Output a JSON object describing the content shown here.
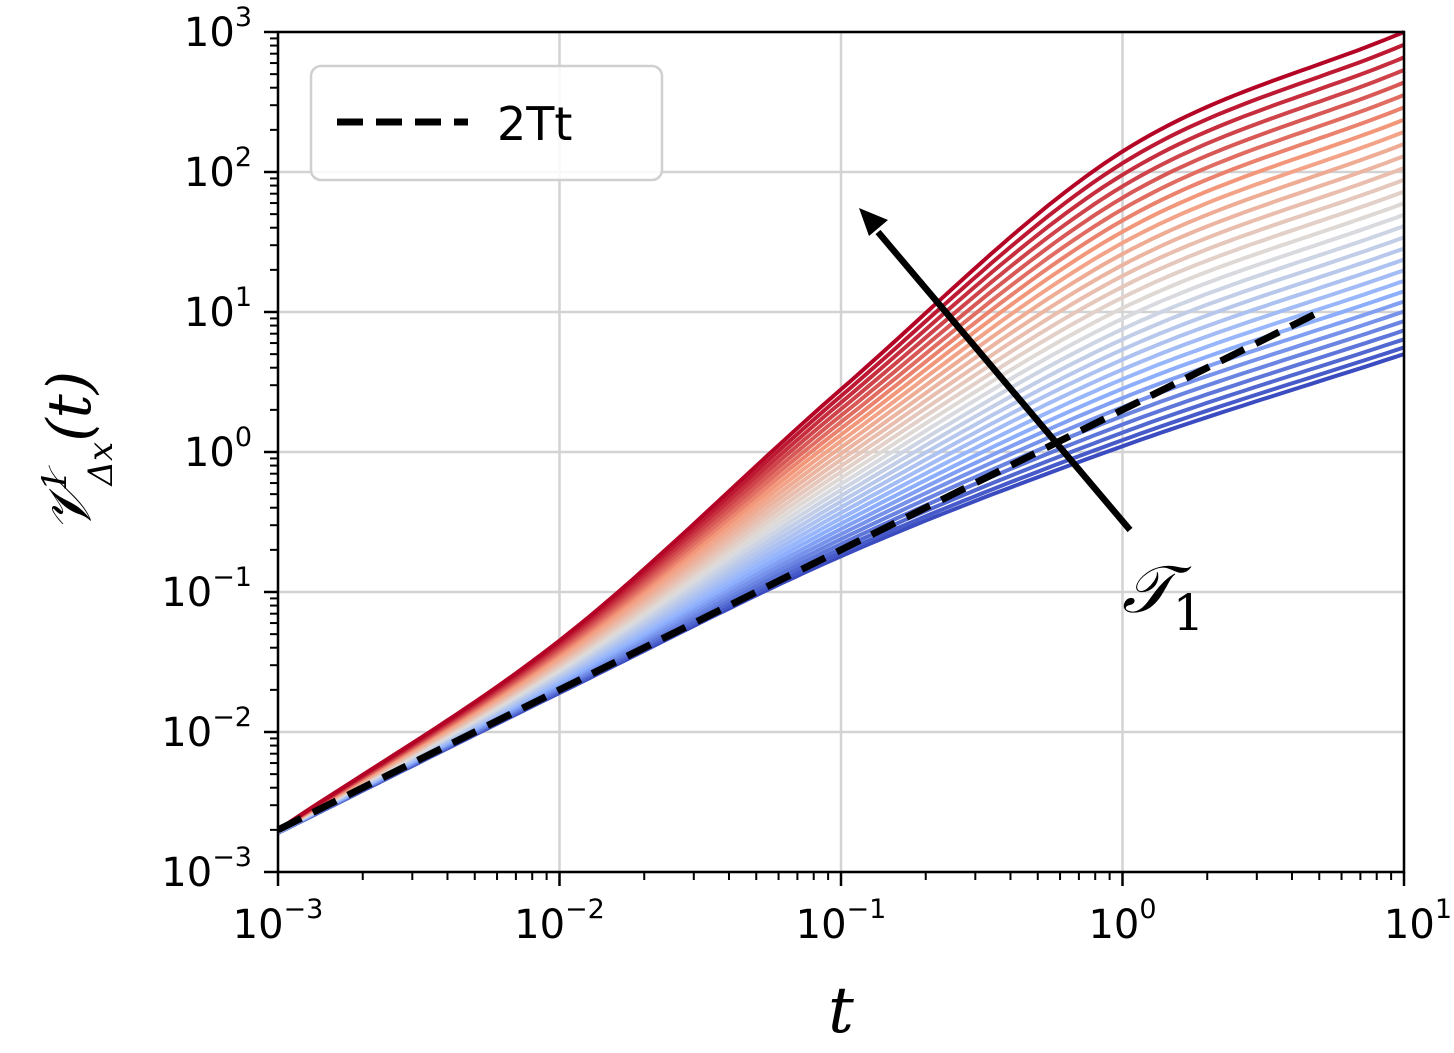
{
  "chart_data": {
    "type": "line",
    "xlabel": "t",
    "ylabel": {
      "base": "𝒱",
      "sup": "1",
      "sub": "Δx",
      "arg": "(t)"
    },
    "xscale": "log",
    "yscale": "log",
    "xlim": [
      0.001,
      10
    ],
    "ylim": [
      0.001,
      1000
    ],
    "grid": true,
    "x_ticks": [
      {
        "value": 0.001,
        "base": "10",
        "exp": "−3"
      },
      {
        "value": 0.01,
        "base": "10",
        "exp": "−2"
      },
      {
        "value": 0.1,
        "base": "10",
        "exp": "−1"
      },
      {
        "value": 1,
        "base": "10",
        "exp": "0"
      },
      {
        "value": 10,
        "base": "10",
        "exp": "1"
      }
    ],
    "y_ticks": [
      {
        "value": 0.001,
        "base": "10",
        "exp": "−3"
      },
      {
        "value": 0.01,
        "base": "10",
        "exp": "−2"
      },
      {
        "value": 0.1,
        "base": "10",
        "exp": "−1"
      },
      {
        "value": 1,
        "base": "10",
        "exp": "0"
      },
      {
        "value": 10,
        "base": "10",
        "exp": "1"
      },
      {
        "value": 100,
        "base": "10",
        "exp": "2"
      },
      {
        "value": 1000,
        "base": "10",
        "exp": "3"
      }
    ],
    "legend": {
      "position": "top-left",
      "entries": [
        {
          "label": "2Tt",
          "style": "dashed",
          "color": "#000000"
        }
      ]
    },
    "reference_line": {
      "name": "2Tt",
      "color": "#000000",
      "style": "dashed",
      "x": [
        0.001,
        5
      ],
      "y": [
        0.002,
        10
      ]
    },
    "colormap": "coolwarm",
    "family": {
      "count": 30,
      "x_samples": [
        0.001,
        0.01,
        0.1,
        1,
        10
      ],
      "y_lowest": [
        0.0019,
        0.019,
        0.18,
        1.1,
        5
      ],
      "y_highest": [
        0.002,
        0.045,
        2.8,
        140,
        1000
      ]
    },
    "annotation": {
      "text": "𝒯",
      "sub": "1",
      "arrow": "increasing"
    }
  }
}
